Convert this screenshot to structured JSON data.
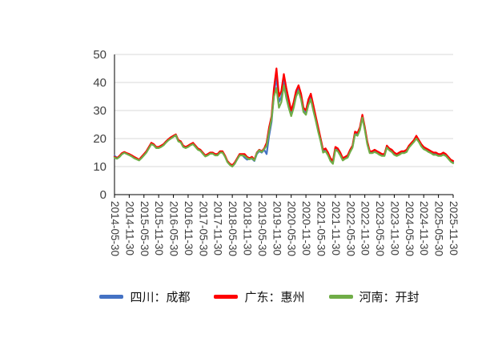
{
  "figure": {
    "background_color": "#ffffff",
    "axis_text_color": "#404040",
    "gridline_color": "#d9d9d9",
    "axis_line_color": "#000000"
  },
  "chart_data": {
    "type": "line",
    "title": "",
    "xlabel": "",
    "ylabel": "",
    "grid": true,
    "legend_position": "bottom",
    "y_range": [
      0,
      50
    ],
    "y_ticks": [
      0,
      10,
      20,
      30,
      40,
      50
    ],
    "points_per_tick": 6,
    "x_tick_labels": [
      "2014-05-30",
      "2014-11-30",
      "2015-05-30",
      "2015-11-30",
      "2016-05-30",
      "2016-11-30",
      "2017-05-30",
      "2017-11-30",
      "2018-05-30",
      "2018-11-30",
      "2019-05-30",
      "2019-11-30",
      "2020-05-30",
      "2020-11-30",
      "2021-05-30",
      "2021-11-30",
      "2022-05-30",
      "2022-11-30",
      "2023-05-30",
      "2023-11-30",
      "2024-05-30",
      "2024-11-30",
      "2025-05-30",
      "2025-11-30"
    ],
    "series": [
      {
        "name": "四川：成都",
        "color": "#4472C4",
        "values": [
          13.8,
          13.2,
          13.5,
          14.5,
          15,
          14.6,
          14.2,
          13.8,
          13.2,
          12.8,
          12.3,
          13.2,
          14.2,
          15.2,
          16.8,
          18.2,
          17.8,
          16.8,
          16.8,
          17.2,
          17.8,
          18.8,
          19.5,
          20.2,
          20.8,
          21,
          19.2,
          18.8,
          17.2,
          16.8,
          17.2,
          17.8,
          18.2,
          17.2,
          16.2,
          15.8,
          14.8,
          13.8,
          14.2,
          14.8,
          14.8,
          14.2,
          14.2,
          15.2,
          15.2,
          13.8,
          11.8,
          10.8,
          10.2,
          11.2,
          12.8,
          14.2,
          14.2,
          13.2,
          12.5,
          12.8,
          12.8,
          12,
          14.5,
          15.5,
          15,
          16,
          14.5,
          21,
          26,
          36,
          42,
          33,
          35,
          41,
          36,
          32,
          29,
          32,
          36,
          38,
          35,
          30,
          29,
          33,
          35,
          31,
          27,
          23,
          19.5,
          15.5,
          16,
          14.5,
          12.5,
          11.5,
          16.5,
          16,
          14.5,
          12.5,
          13,
          13.5,
          15.5,
          17,
          22,
          21.5,
          23.5,
          28,
          23.5,
          18.5,
          15,
          15,
          15.5,
          15,
          14.5,
          14,
          14,
          17,
          16,
          15.5,
          14.5,
          14,
          14.5,
          15,
          15,
          15.5,
          17,
          18,
          19,
          20.5,
          19,
          17.5,
          16.5,
          16,
          15.5,
          15,
          14.5,
          14.5,
          14,
          14,
          14.5,
          14,
          13,
          12,
          11.5
        ]
      },
      {
        "name": "广东：惠州",
        "color": "#FF0000",
        "values": [
          13.5,
          13,
          13.8,
          14.8,
          15.2,
          14.8,
          14.5,
          14,
          13.5,
          13,
          12.5,
          13.5,
          14.5,
          15.5,
          17,
          18.5,
          18,
          17,
          17,
          17.5,
          18,
          19,
          19.8,
          20.5,
          21,
          21.5,
          19.5,
          19,
          17.5,
          17,
          17.5,
          18,
          18.5,
          17.5,
          16.5,
          16,
          15,
          14,
          14.5,
          15,
          15,
          14.5,
          14.5,
          15.5,
          15.5,
          14,
          12,
          11,
          10.5,
          11.5,
          13,
          14.5,
          14.5,
          14.5,
          13.5,
          13,
          13.5,
          12.5,
          15,
          16,
          15.5,
          16.5,
          18.5,
          24,
          28,
          38,
          45,
          35,
          37,
          43,
          38,
          34,
          30,
          33,
          37,
          39,
          36,
          31,
          30,
          34,
          36,
          32,
          28,
          24,
          20,
          16,
          16.5,
          15,
          13,
          12,
          17,
          16.5,
          15,
          13,
          13.5,
          14,
          16,
          17.5,
          22.5,
          22,
          24,
          28.5,
          24,
          19,
          15.5,
          15.5,
          16,
          15.5,
          15,
          14.5,
          14.5,
          17.5,
          16.5,
          16,
          15,
          14.5,
          15,
          15.5,
          15.5,
          16,
          17.5,
          18.5,
          19.5,
          21,
          19.5,
          18,
          17,
          16.5,
          16,
          15.5,
          15,
          15,
          14.5,
          14.5,
          15,
          14.5,
          13.5,
          12.5,
          12
        ]
      },
      {
        "name": "河南：开封",
        "color": "#70AD47",
        "values": [
          13.2,
          12.8,
          13.4,
          14.4,
          14.9,
          14.5,
          14.1,
          13.6,
          13,
          12.6,
          12.2,
          13,
          14,
          15,
          16.5,
          18,
          17.6,
          16.6,
          16.6,
          17,
          17.6,
          18.6,
          19.4,
          20,
          20.6,
          21.2,
          19,
          18.6,
          17,
          16.6,
          17,
          17.6,
          18,
          17,
          16,
          15.6,
          14.6,
          13.6,
          14,
          14.6,
          14.6,
          14,
          14,
          15,
          15,
          13.6,
          11.6,
          10.6,
          10,
          11,
          12.6,
          14,
          14,
          13.8,
          13,
          12.6,
          13,
          12.2,
          14.8,
          15.8,
          15.2,
          16.2,
          17.5,
          22.5,
          27,
          35,
          38,
          31,
          33,
          39,
          34.5,
          31,
          28,
          31,
          35,
          37,
          34,
          29.5,
          28.5,
          32,
          34,
          30,
          26.5,
          22.5,
          19,
          15,
          15.5,
          14,
          12,
          11,
          16,
          15.5,
          14,
          12.2,
          12.8,
          13.2,
          15.2,
          16.8,
          21.5,
          21,
          23,
          27.5,
          23,
          18,
          14.8,
          14.8,
          15.2,
          14.8,
          14.2,
          13.8,
          13.8,
          16.8,
          15.8,
          15.2,
          14.2,
          13.8,
          14.2,
          14.8,
          14.8,
          15.2,
          16.8,
          17.8,
          18.8,
          20,
          18.8,
          17.2,
          16.2,
          15.8,
          15.2,
          14.8,
          14.2,
          14.2,
          13.8,
          13.8,
          14.2,
          13.8,
          12.8,
          11.8,
          11.2
        ]
      }
    ]
  }
}
